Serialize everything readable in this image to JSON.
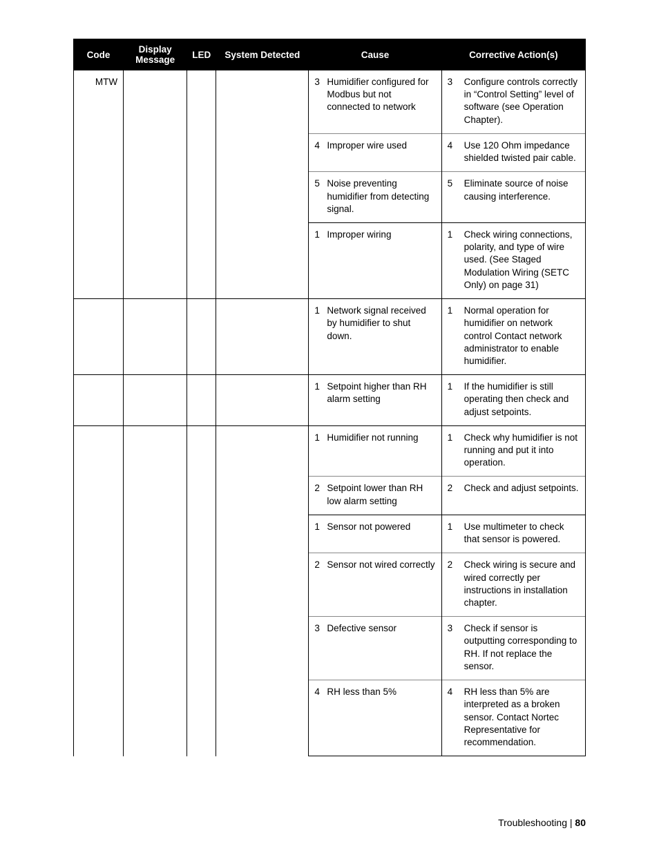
{
  "columns": {
    "code": "Code",
    "display": "Display Message",
    "led": "LED",
    "system": "System Detected",
    "cause": "Cause",
    "action": "Corrective Action(s)"
  },
  "groups": [
    {
      "code": "MTW",
      "rows": [
        {
          "cause_n": "3",
          "cause_t": "Humidifier configured for Modbus but not connected to network",
          "action_n": "3",
          "action_t": "Configure controls correctly in “Control Setting” level of software (see Operation Chapter)."
        },
        {
          "cause_n": "4",
          "cause_t": "Improper wire used",
          "action_n": "4",
          "action_t": "Use 120 Ohm impedance shielded twisted pair cable."
        },
        {
          "cause_n": "5",
          "cause_t": "Noise preventing humidifier from detecting signal.",
          "action_n": "5",
          "action_t": "Eliminate source of noise causing interference."
        }
      ]
    },
    {
      "code": "",
      "rows": [
        {
          "cause_n": "1",
          "cause_t": "Improper wiring",
          "action_n": "1",
          "action_t": "Check wiring connections, polarity, and type of wire used. (See Staged Modulation Wiring (SETC Only) on page 31)"
        }
      ]
    },
    {
      "code": "",
      "rows": [
        {
          "cause_n": "1",
          "cause_t": "Network signal received by humidifier to shut down.",
          "action_n": "1",
          "action_t": "Normal operation for humidifier on network control  Contact network administrator to enable humidifier."
        }
      ]
    },
    {
      "code": "",
      "rows": [
        {
          "cause_n": "1",
          "cause_t": "Setpoint higher than RH alarm setting",
          "action_n": "1",
          "action_t": "If the humidifier is still operating then check and adjust setpoints."
        }
      ]
    },
    {
      "code": "",
      "rows": [
        {
          "cause_n": "1",
          "cause_t": "Humidifier not running",
          "action_n": "1",
          "action_t": "Check why humidifier is not running and put it into operation."
        },
        {
          "cause_n": "2",
          "cause_t": "Setpoint lower than RH low alarm setting",
          "action_n": "2",
          "action_t": "Check and adjust setpoints."
        }
      ]
    },
    {
      "code": "",
      "rows": [
        {
          "cause_n": "1",
          "cause_t": "Sensor not powered",
          "action_n": "1",
          "action_t": "Use multimeter to check that sensor is powered."
        },
        {
          "cause_n": "2",
          "cause_t": "Sensor not wired correctly",
          "action_n": "2",
          "action_t": "Check wiring is secure and wired correctly per instructions in installation chapter."
        },
        {
          "cause_n": "3",
          "cause_t": "Defective sensor",
          "action_n": "3",
          "action_t": "Check if sensor is outputting corresponding to RH.  If not replace the sensor."
        },
        {
          "cause_n": "4",
          "cause_t": "RH less than 5%",
          "action_n": "4",
          "action_t": "RH less than 5% are interpreted as a broken sensor.  Contact Nortec Representative for recommendation."
        }
      ]
    }
  ],
  "footer": {
    "section": "Troubleshooting",
    "sep": " | ",
    "page": "80"
  }
}
